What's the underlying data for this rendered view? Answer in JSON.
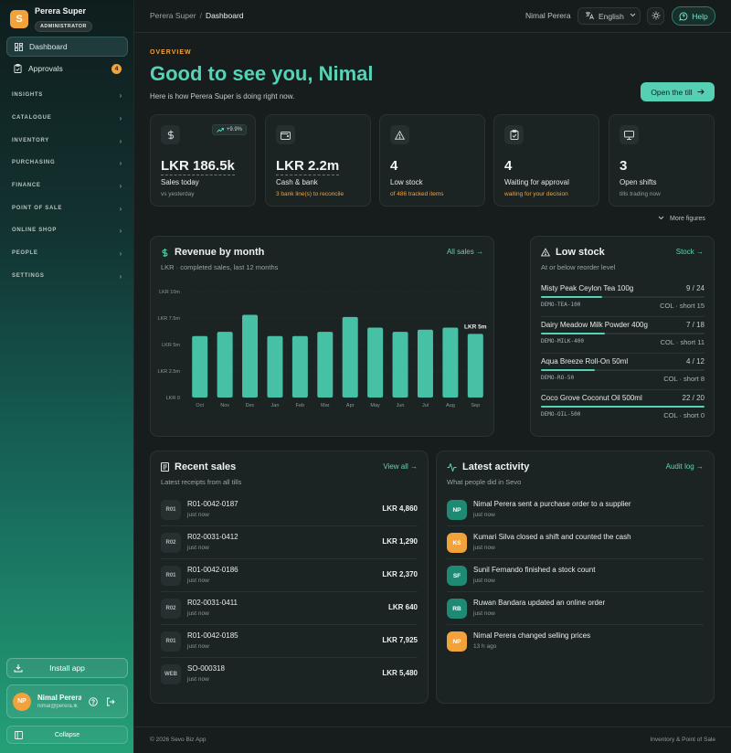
{
  "brand": {
    "name": "Perera Super",
    "role": "ADMINISTRATOR",
    "logo_letter": "S"
  },
  "nav": {
    "dashboard": "Dashboard",
    "approvals": "Approvals",
    "approvals_badge": "4",
    "groups": [
      "INSIGHTS",
      "CATALOGUE",
      "INVENTORY",
      "PURCHASING",
      "FINANCE",
      "POINT OF SALE",
      "ONLINE SHOP",
      "PEOPLE",
      "SETTINGS"
    ]
  },
  "install_label": "Install app",
  "user": {
    "initials": "NP",
    "name": "Nimal Perera",
    "email": "nimal@perera.lk"
  },
  "collapse_label": "Collapse",
  "topbar": {
    "crumb_root": "Perera Super",
    "crumb_sep": "/",
    "crumb_current": "Dashboard",
    "user": "Nimal Perera",
    "language": "English",
    "help": "Help"
  },
  "hero": {
    "eyebrow": "OVERVIEW",
    "greeting": "Good to see you, Nimal",
    "subline": "Here is how Perera Super is doing right now.",
    "open_till": "Open the till"
  },
  "stats": [
    {
      "icon": "dollar-icon",
      "value": "LKR 186.5k",
      "label": "Sales today",
      "sub": "vs yesterday",
      "trend": "+9.9%"
    },
    {
      "icon": "wallet-icon",
      "value": "LKR 2.2m",
      "label": "Cash & bank",
      "sub": "3 bank line(s) to reconcile"
    },
    {
      "icon": "alert-icon",
      "value": "4",
      "label": "Low stock",
      "sub": "of 486 tracked items"
    },
    {
      "icon": "clipboard-icon",
      "value": "4",
      "label": "Waiting for approval",
      "sub": "waiting for your decision"
    },
    {
      "icon": "monitor-icon",
      "value": "3",
      "label": "Open shifts",
      "sub": "tills trading now"
    }
  ],
  "more_figures": "More figures",
  "revenue": {
    "title": "Revenue by month",
    "subtitle": "LKR · completed sales, last 12 months",
    "link": "All sales"
  },
  "chart_data": {
    "type": "bar",
    "title": "Revenue by month",
    "subtitle": "LKR · completed sales, last 12 months",
    "categories": [
      "Oct",
      "Nov",
      "Dec",
      "Jan",
      "Feb",
      "Mar",
      "Apr",
      "May",
      "Jun",
      "Jul",
      "Aug",
      "Sep"
    ],
    "values": [
      5.8,
      6.2,
      7.8,
      5.8,
      5.8,
      6.2,
      7.6,
      6.6,
      6.2,
      6.4,
      6.6,
      6.0
    ],
    "y_ticks": [
      "LKR 0",
      "LKR 2.5m",
      "LKR 5m",
      "LKR 7.5m",
      "LKR 10m"
    ],
    "ylim": [
      0,
      10
    ],
    "unit": "LKR m",
    "highlight_label": "LKR 5m",
    "bar_color": "#47c1a6"
  },
  "low_stock": {
    "title": "Low stock",
    "subtitle": "At or below reorder level",
    "link": "Stock",
    "items": [
      {
        "name": "Misty Peak Ceylon Tea 100g",
        "qty": "9 / 24",
        "fill": 0.375,
        "sku": "DEMO-TEA-100",
        "short": "COL · short 15"
      },
      {
        "name": "Dairy Meadow Milk Powder 400g",
        "qty": "7 / 18",
        "fill": 0.39,
        "sku": "DEMO-MILK-400",
        "short": "COL · short 11"
      },
      {
        "name": "Aqua Breeze Roll-On 50ml",
        "qty": "4 / 12",
        "fill": 0.33,
        "sku": "DEMO-RO-50",
        "short": "COL · short 8"
      },
      {
        "name": "Coco Grove Coconut Oil 500ml",
        "qty": "22 / 20",
        "fill": 1.0,
        "sku": "DEMO-OIL-500",
        "short": "COL · short 0"
      }
    ]
  },
  "sales": {
    "title": "Recent sales",
    "subtitle": "Latest receipts from all tills",
    "link": "View all",
    "rows": [
      {
        "chip": "R01",
        "id": "R01-0042-0187",
        "time": "just now",
        "amount": "LKR 4,860"
      },
      {
        "chip": "R02",
        "id": "R02-0031-0412",
        "time": "just now",
        "amount": "LKR 1,290"
      },
      {
        "chip": "R01",
        "id": "R01-0042-0186",
        "time": "just now",
        "amount": "LKR 2,370"
      },
      {
        "chip": "R02",
        "id": "R02-0031-0411",
        "time": "just now",
        "amount": "LKR 640"
      },
      {
        "chip": "R01",
        "id": "R01-0042-0185",
        "time": "just now",
        "amount": "LKR 7,925"
      },
      {
        "chip": "WEB",
        "id": "SO-000318",
        "time": "just now",
        "amount": "LKR 5,480"
      }
    ]
  },
  "activity": {
    "title": "Latest activity",
    "subtitle": "What people did in Sevo",
    "link": "Audit log",
    "rows": [
      {
        "initials": "NP",
        "color": "#1f8a74",
        "text": "Nimal Perera sent a purchase order to a supplier",
        "time": "just now"
      },
      {
        "initials": "KS",
        "color": "#f2a23a",
        "text": "Kumari Silva closed a shift and counted the cash",
        "time": "just now"
      },
      {
        "initials": "SF",
        "color": "#1f8a74",
        "text": "Sunil Fernando finished a stock count",
        "time": "just now"
      },
      {
        "initials": "RB",
        "color": "#1f8a74",
        "text": "Ruwan Bandara updated an online order",
        "time": "just now"
      },
      {
        "initials": "NP",
        "color": "#f2a23a",
        "text": "Nimal Perera changed selling prices",
        "time": "13 h ago"
      }
    ]
  },
  "footer": {
    "left": "© 2026 Sevo Biz App",
    "right": "Inventory & Point of Sale"
  }
}
